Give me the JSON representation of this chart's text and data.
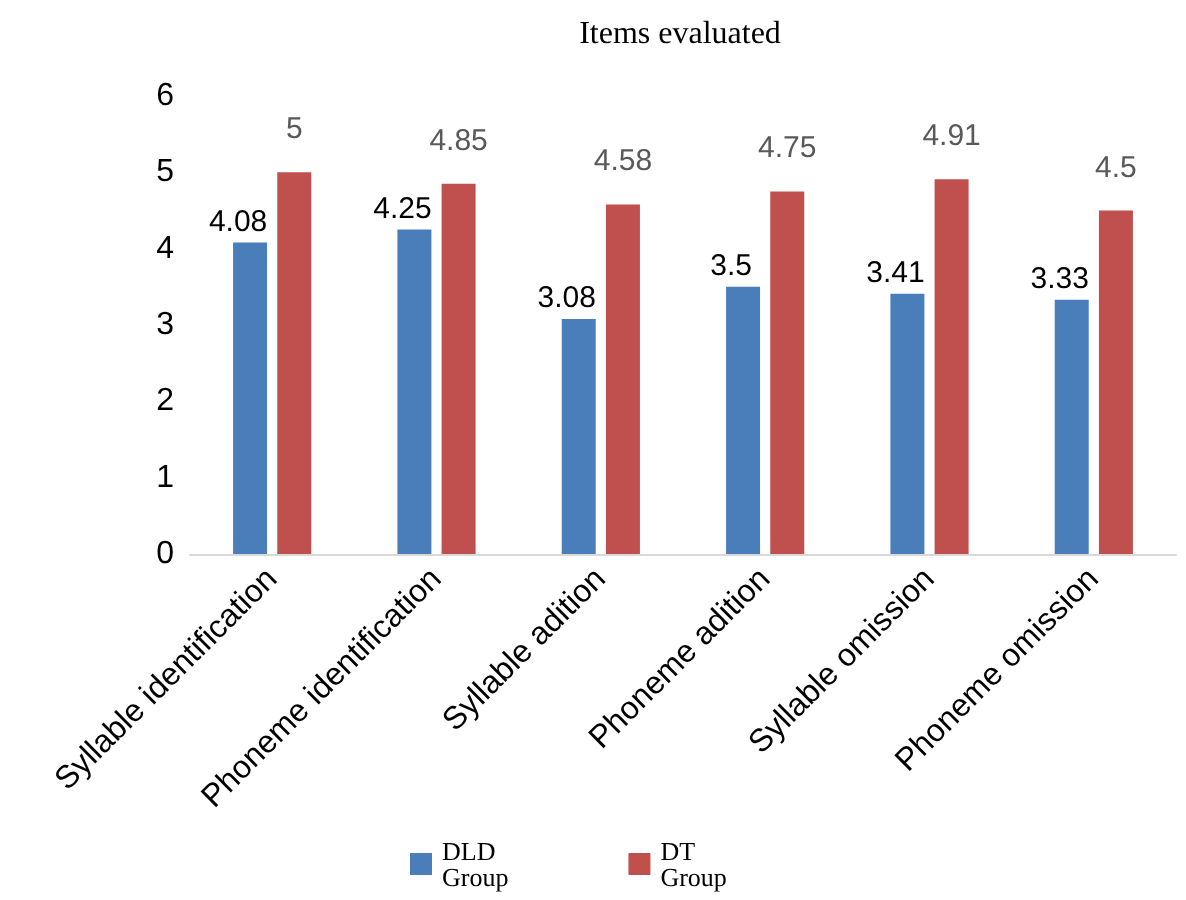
{
  "chart_data": {
    "type": "bar",
    "title": "Items evaluated",
    "categories": [
      "Syllable identification",
      "Phoneme identification",
      "Syllable adition",
      "Phoneme adition",
      "Syllable omission",
      "Phoneme omission"
    ],
    "series": [
      {
        "name": "DLD Group",
        "color": "#4a7ebb",
        "values": [
          4.08,
          4.25,
          3.08,
          3.5,
          3.41,
          3.33
        ]
      },
      {
        "name": "DT Group",
        "color": "#c0504d",
        "values": [
          5,
          4.85,
          4.58,
          4.75,
          4.91,
          4.5
        ]
      }
    ],
    "ylim": [
      0,
      6
    ],
    "yticks": [
      0,
      1,
      2,
      3,
      4,
      5,
      6
    ],
    "grid": false,
    "legend": "bottom",
    "data_labels": true
  }
}
